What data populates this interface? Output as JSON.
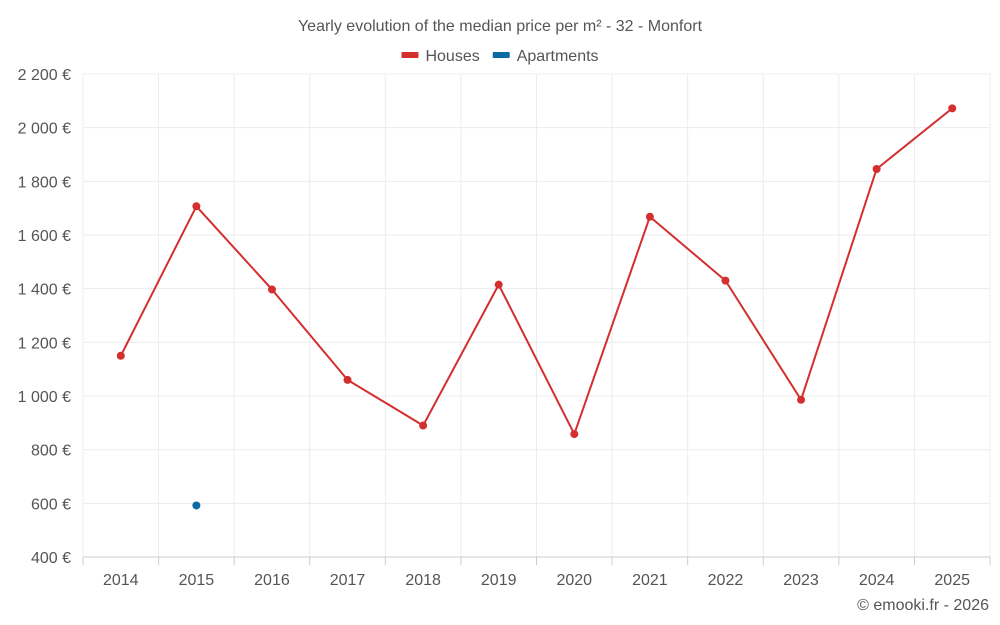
{
  "chart_data": {
    "type": "line",
    "title": "Yearly evolution of the median price per m² - 32 - Monfort",
    "categories": [
      "2014",
      "2015",
      "2016",
      "2017",
      "2018",
      "2019",
      "2020",
      "2021",
      "2022",
      "2023",
      "2024",
      "2025"
    ],
    "series": [
      {
        "name": "Houses",
        "color": "#d32f2f",
        "values": [
          1150,
          1707,
          1397,
          1060,
          890,
          1415,
          858,
          1668,
          1430,
          986,
          1846,
          2072
        ]
      },
      {
        "name": "Apartments",
        "color": "#0a6aa1",
        "values": [
          null,
          592,
          null,
          null,
          null,
          null,
          null,
          null,
          null,
          null,
          null,
          null
        ]
      }
    ],
    "ylim": [
      400,
      2200
    ],
    "yticks": [
      400,
      600,
      800,
      1000,
      1200,
      1400,
      1600,
      1800,
      2000,
      2200
    ],
    "ytick_labels": [
      "400 €",
      "600 €",
      "800 €",
      "1 000 €",
      "1 200 €",
      "1 400 €",
      "1 600 €",
      "1 800 €",
      "2 000 €",
      "2 200 €"
    ],
    "xlabel": "",
    "ylabel": "",
    "grid": true,
    "legend_position": "top-center"
  },
  "credit": "© emooki.fr - 2026"
}
